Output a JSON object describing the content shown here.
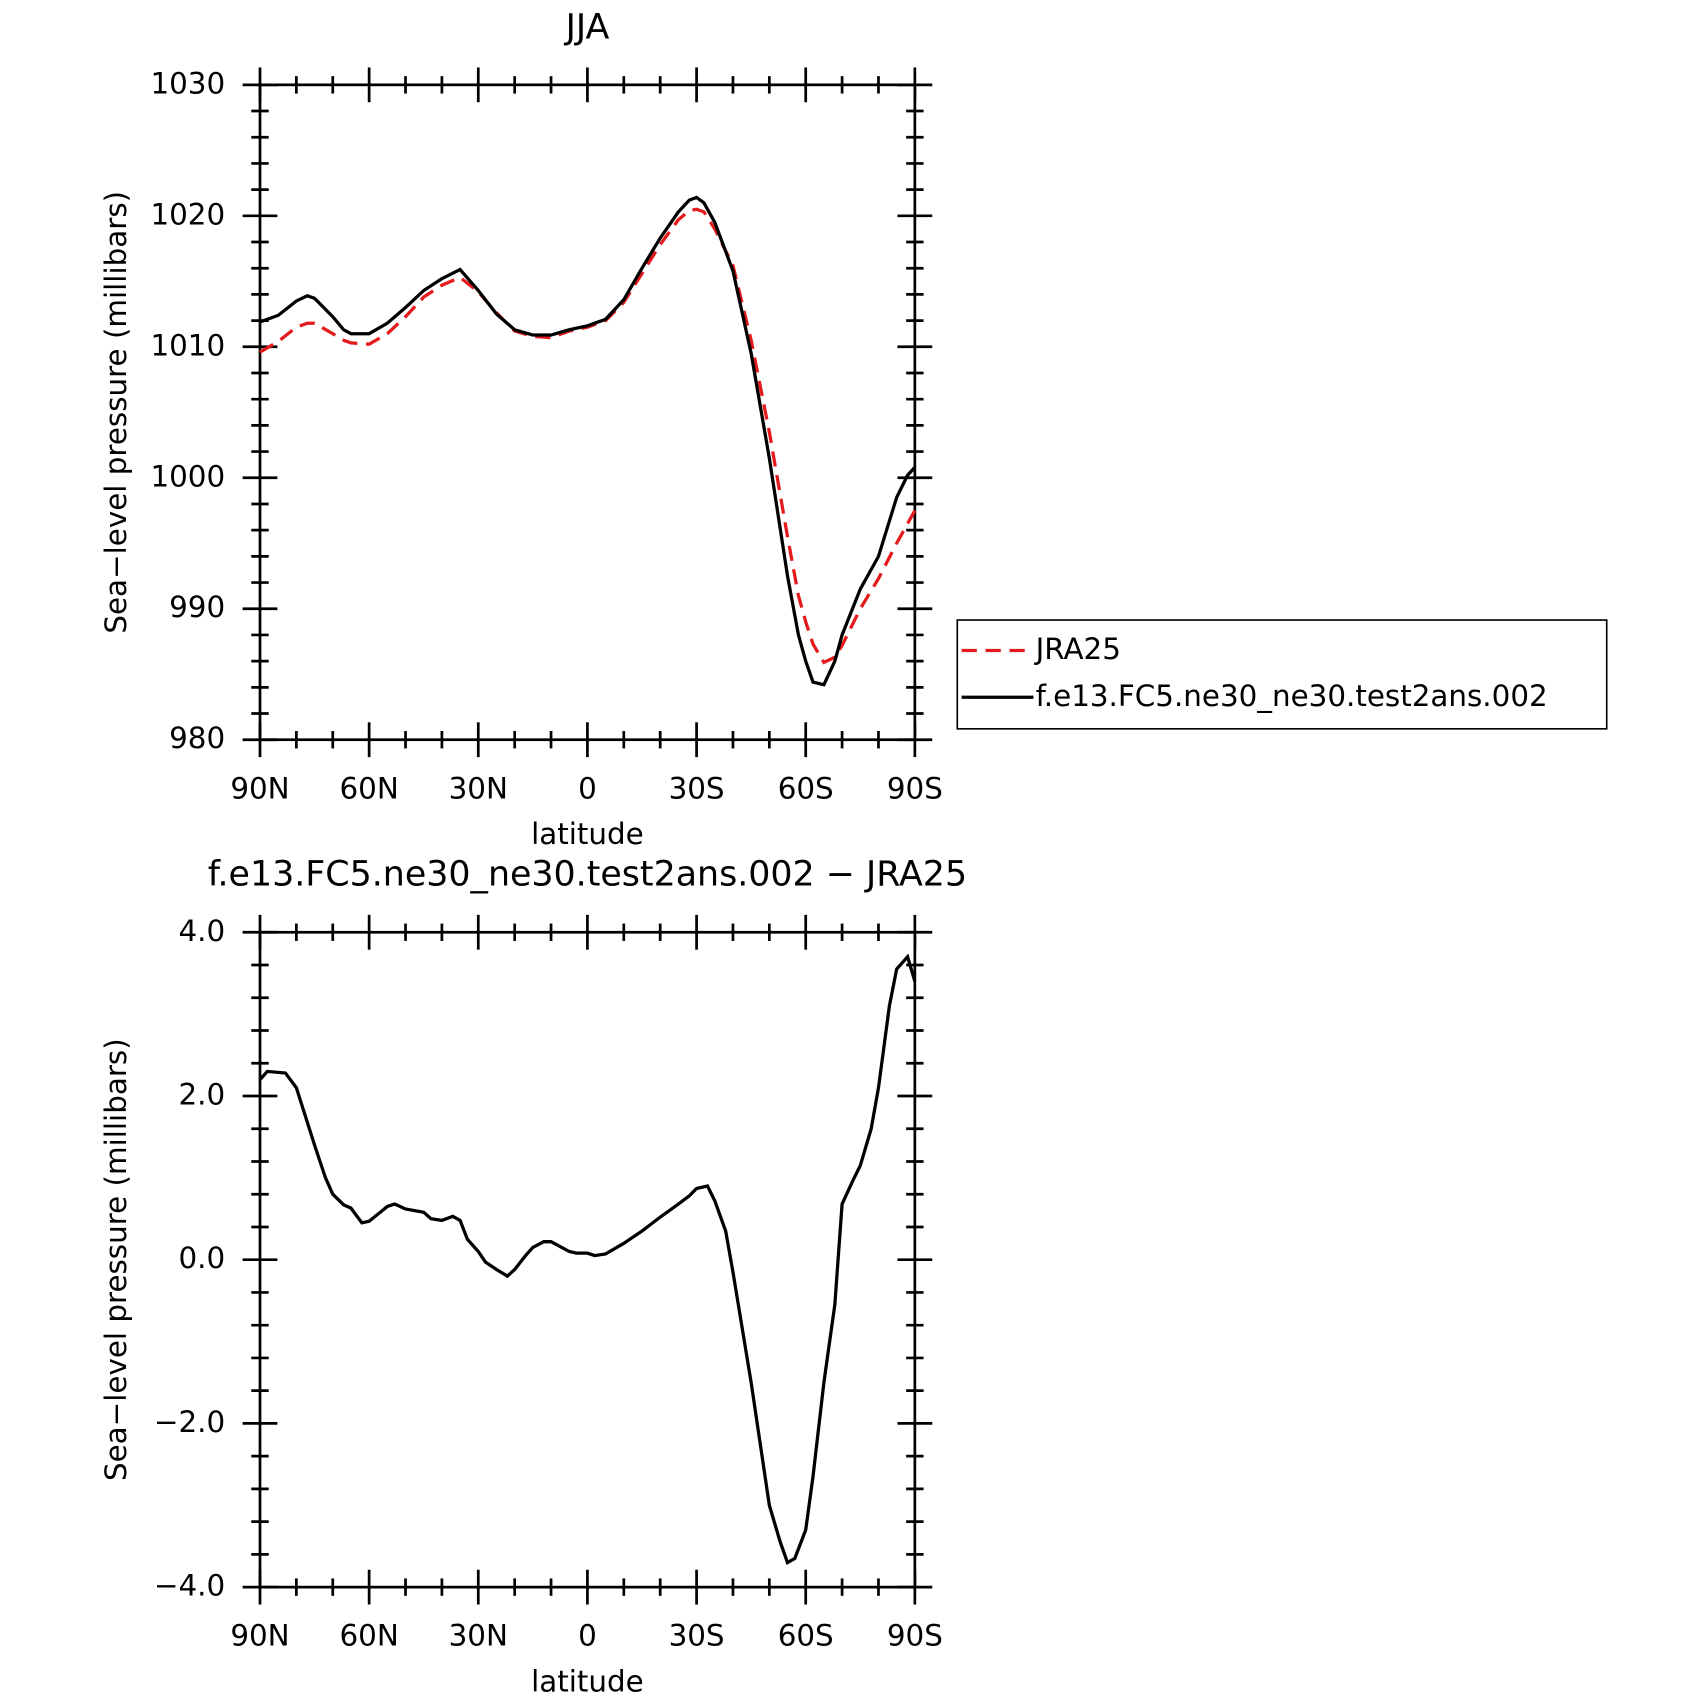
{
  "chart_data": [
    {
      "type": "line",
      "title": "JJA",
      "xlabel": "latitude",
      "ylabel": "Sea−level pressure (millibars)",
      "x": [
        90,
        85,
        80,
        77,
        75,
        70,
        67,
        65,
        60,
        55,
        50,
        45,
        40,
        35,
        30,
        25,
        20,
        15,
        10,
        5,
        0,
        -5,
        -10,
        -15,
        -20,
        -25,
        -28,
        -30,
        -32,
        -35,
        -40,
        -45,
        -50,
        -55,
        -58,
        -60,
        -62,
        -65,
        -68,
        -70,
        -75,
        -80,
        -85,
        -88,
        -90
      ],
      "series": [
        {
          "name": "JRA25",
          "color": "#e41a1c",
          "dash": true,
          "values": [
            1009.6,
            1010.4,
            1011.5,
            1011.8,
            1011.8,
            1011.0,
            1010.5,
            1010.3,
            1010.2,
            1011.0,
            1012.3,
            1013.8,
            1014.7,
            1015.3,
            1014.2,
            1012.6,
            1011.2,
            1010.8,
            1010.7,
            1011.2,
            1011.5,
            1012.0,
            1013.4,
            1015.6,
            1017.8,
            1019.7,
            1020.4,
            1020.5,
            1020.3,
            1019.0,
            1016.2,
            1010.5,
            1003.5,
            995.5,
            991.0,
            989.0,
            987.3,
            985.9,
            986.3,
            987.2,
            990.0,
            992.3,
            995.0,
            996.5,
            997.5
          ]
        },
        {
          "name": "f.e13.FC5.ne30_ne30.test2ans.002",
          "color": "#000000",
          "dash": false,
          "values": [
            1011.9,
            1012.4,
            1013.5,
            1013.9,
            1013.7,
            1012.3,
            1011.3,
            1011.0,
            1011.0,
            1011.8,
            1013.0,
            1014.3,
            1015.2,
            1015.9,
            1014.3,
            1012.5,
            1011.3,
            1010.9,
            1010.9,
            1011.3,
            1011.6,
            1012.1,
            1013.6,
            1016.0,
            1018.3,
            1020.3,
            1021.2,
            1021.4,
            1021.0,
            1019.5,
            1015.8,
            1009.5,
            1001.5,
            992.5,
            988.0,
            986.0,
            984.4,
            984.2,
            986.0,
            988.0,
            991.5,
            994.0,
            998.5,
            1000.2,
            1000.8
          ]
        }
      ],
      "xlim": [
        90,
        -90
      ],
      "xticks": [
        {
          "value": 90,
          "label": "90N"
        },
        {
          "value": 60,
          "label": "60N"
        },
        {
          "value": 30,
          "label": "30N"
        },
        0,
        {
          "value": -30,
          "label": "30S"
        },
        {
          "value": -60,
          "label": "60S"
        },
        {
          "value": -90,
          "label": "90S"
        }
      ],
      "ylim": [
        980,
        1030
      ],
      "yticks": [
        980,
        990,
        1000,
        1010,
        1020,
        1030
      ],
      "legend": "right"
    },
    {
      "type": "line",
      "title": "f.e13.FC5.ne30_ne30.test2ans.002 − JRA25",
      "xlabel": "latitude",
      "ylabel": "Sea−level pressure (millibars)",
      "x": [
        90,
        88,
        83,
        80,
        75,
        72,
        70,
        67,
        65,
        62,
        60,
        55,
        53,
        50,
        45,
        43,
        40,
        37,
        35,
        33,
        30,
        28,
        25,
        22,
        20,
        17,
        15,
        12,
        10,
        5,
        3,
        0,
        -2,
        -5,
        -10,
        -15,
        -20,
        -25,
        -28,
        -30,
        -33,
        -35,
        -38,
        -40,
        -45,
        -50,
        -53,
        -55,
        -57,
        -60,
        -62,
        -65,
        -68,
        -70,
        -73,
        -75,
        -78,
        -80,
        -83,
        -85,
        -88,
        -90
      ],
      "values": [
        2.2,
        2.3,
        2.28,
        2.1,
        1.4,
        1.0,
        0.8,
        0.67,
        0.63,
        0.45,
        0.47,
        0.65,
        0.68,
        0.62,
        0.58,
        0.5,
        0.48,
        0.53,
        0.48,
        0.25,
        0.1,
        -0.03,
        -0.12,
        -0.2,
        -0.12,
        0.05,
        0.15,
        0.22,
        0.22,
        0.1,
        0.08,
        0.08,
        0.05,
        0.07,
        0.2,
        0.35,
        0.52,
        0.68,
        0.78,
        0.87,
        0.9,
        0.72,
        0.35,
        -0.15,
        -1.5,
        -3.0,
        -3.45,
        -3.7,
        -3.65,
        -3.3,
        -2.65,
        -1.5,
        -0.55,
        0.68,
        0.97,
        1.15,
        1.6,
        2.1,
        3.1,
        3.55,
        3.7,
        3.4
      ],
      "color": "#000000",
      "xlim": [
        90,
        -90
      ],
      "xticks": [
        {
          "value": 90,
          "label": "90N"
        },
        {
          "value": 60,
          "label": "60N"
        },
        {
          "value": 30,
          "label": "30N"
        },
        0,
        {
          "value": -30,
          "label": "30S"
        },
        {
          "value": -60,
          "label": "60S"
        },
        {
          "value": -90,
          "label": "90S"
        }
      ],
      "ylim": [
        -4,
        4
      ],
      "yticks": [
        {
          "value": -4,
          "label": "−4.0"
        },
        {
          "value": -2,
          "label": "−2.0"
        },
        {
          "value": 0,
          "label": "0.0"
        },
        {
          "value": 2,
          "label": "2.0"
        },
        {
          "value": 4,
          "label": "4.0"
        }
      ]
    }
  ]
}
